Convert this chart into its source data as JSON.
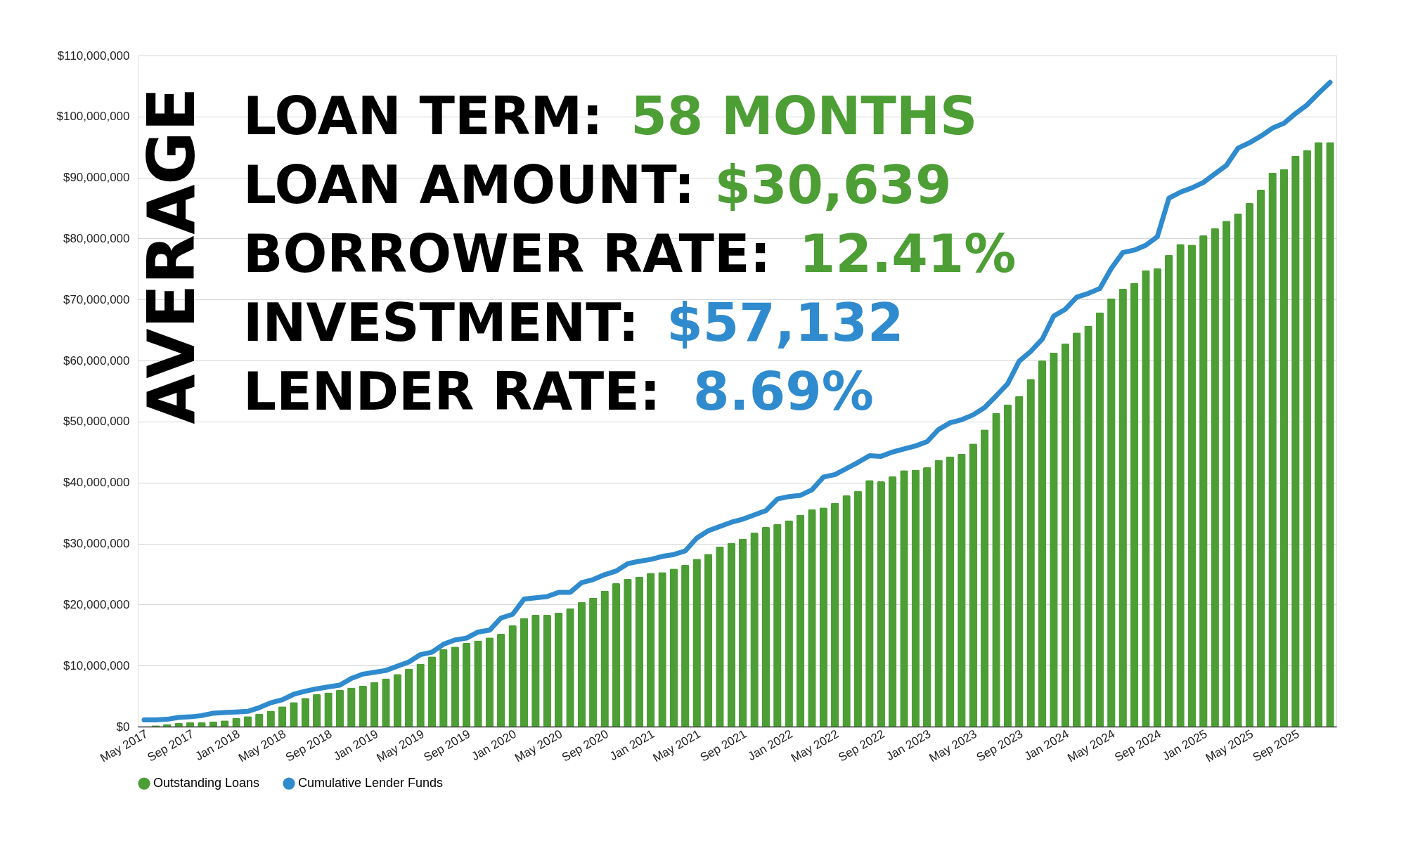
{
  "chart_data": {
    "type": "bar",
    "categories": [
      "May 2017",
      null,
      null,
      null,
      "Sep 2017",
      null,
      null,
      null,
      "Jan 2018",
      null,
      null,
      null,
      "May 2018",
      null,
      null,
      null,
      "Sep 2018",
      null,
      null,
      null,
      "Jan 2019",
      null,
      null,
      null,
      "May 2019",
      null,
      null,
      null,
      "Sep 2019",
      null,
      null,
      null,
      "Jan 2020",
      null,
      null,
      null,
      "May 2020",
      null,
      null,
      null,
      "Sep 2020",
      null,
      null,
      null,
      "Jan 2021",
      null,
      null,
      null,
      "May 2021",
      null,
      null,
      null,
      "Sep 2021",
      null,
      null,
      null,
      "Jan 2022",
      null,
      null,
      null,
      "May 2022",
      null,
      null,
      null,
      "Sep 2022",
      null,
      null,
      null,
      "Jan 2023",
      null,
      null,
      null,
      "May 2023",
      null,
      null,
      null,
      "Sep 2023",
      null,
      null,
      null,
      "Jan 2024",
      null,
      null,
      null,
      "May 2024",
      null,
      null,
      null,
      "Sep 2024",
      null,
      null,
      null,
      "Jan 2025",
      null,
      null,
      null,
      "May 2025",
      null,
      null,
      null,
      "Sep 2025",
      null,
      null,
      null
    ],
    "series": [
      {
        "name": "Outstanding Loans",
        "color": "#4c9e35",
        "values": [
          null,
          200000,
          400000,
          600000,
          700000,
          700000,
          800000,
          1000000,
          1400000,
          1700000,
          2100000,
          2600000,
          3300000,
          4000000,
          4700000,
          5300000,
          5600000,
          6000000,
          6400000,
          6700000,
          7300000,
          7900000,
          8600000,
          9500000,
          10300000,
          11500000,
          12700000,
          13100000,
          13700000,
          14100000,
          14600000,
          15200000,
          16600000,
          17800000,
          18300000,
          18300000,
          18700000,
          19400000,
          20400000,
          21100000,
          22300000,
          23500000,
          24200000,
          24600000,
          25200000,
          25300000,
          25900000,
          26500000,
          27500000,
          28300000,
          29500000,
          30100000,
          30800000,
          31800000,
          32700000,
          33200000,
          33800000,
          34700000,
          35600000,
          35900000,
          36700000,
          37900000,
          38600000,
          40400000,
          40200000,
          41000000,
          42000000,
          42100000,
          42500000,
          43700000,
          44300000,
          44700000,
          46400000,
          48700000,
          51400000,
          52800000,
          54200000,
          57000000,
          60000000,
          61300000,
          62800000,
          64600000,
          65700000,
          67900000,
          70200000,
          71800000,
          72700000,
          74800000,
          75100000,
          77300000,
          79100000,
          79000000,
          80500000,
          81700000,
          82900000,
          84100000,
          85800000,
          88000000,
          90800000,
          91400000,
          93600000,
          94500000,
          95800000,
          95800000
        ]
      },
      {
        "name": "Cumulative Lender Funds",
        "type": "line",
        "color": "#2f8bce",
        "values": [
          1100000,
          1100000,
          1200000,
          1500000,
          1600000,
          1800000,
          2200000,
          2300000,
          2400000,
          2500000,
          3100000,
          3900000,
          4400000,
          5300000,
          5800000,
          6200000,
          6500000,
          6800000,
          7900000,
          8600000,
          8900000,
          9200000,
          9900000,
          10600000,
          11800000,
          12200000,
          13500000,
          14200000,
          14500000,
          15500000,
          15800000,
          17800000,
          18400000,
          20900000,
          21100000,
          21300000,
          22000000,
          22000000,
          23600000,
          24100000,
          24900000,
          25500000,
          26700000,
          27100000,
          27400000,
          27900000,
          28200000,
          28800000,
          30900000,
          32100000,
          32800000,
          33500000,
          34000000,
          34700000,
          35400000,
          37300000,
          37700000,
          37900000,
          38800000,
          40900000,
          41300000,
          42300000,
          43300000,
          44400000,
          44300000,
          45000000,
          45500000,
          46000000,
          46700000,
          48700000,
          49800000,
          50300000,
          51100000,
          52300000,
          54200000,
          56200000,
          59900000,
          61500000,
          63500000,
          67300000,
          68400000,
          70400000,
          71000000,
          71800000,
          75100000,
          77700000,
          78100000,
          78900000,
          80300000,
          86600000,
          87600000,
          88300000,
          89200000,
          90600000,
          92000000,
          94800000,
          95700000,
          96800000,
          98100000,
          98900000,
          100500000,
          101900000,
          103800000,
          105600000
        ]
      }
    ],
    "ylim": [
      0,
      110000000
    ],
    "yticks": [
      {
        "value": 0,
        "label": "$0"
      },
      {
        "value": 10000000,
        "label": "$10,000,000"
      },
      {
        "value": 20000000,
        "label": "$20,000,000"
      },
      {
        "value": 30000000,
        "label": "$30,000,000"
      },
      {
        "value": 40000000,
        "label": "$40,000,000"
      },
      {
        "value": 50000000,
        "label": "$50,000,000"
      },
      {
        "value": 60000000,
        "label": "$60,000,000"
      },
      {
        "value": 70000000,
        "label": "$70,000,000"
      },
      {
        "value": 80000000,
        "label": "$80,000,000"
      },
      {
        "value": 90000000,
        "label": "$90,000,000"
      },
      {
        "value": 100000000,
        "label": "$100,000,000"
      },
      {
        "value": 110000000,
        "label": "$110,000,000"
      }
    ],
    "grid": "y",
    "legend": "bottom",
    "line_style": "solid",
    "annotations": [
      "AVERAGE",
      "LOAN TERM: 58 MONTHS",
      "LOAN AMOUNT: $30,639",
      "BORROWER RATE: 12.41%",
      "INVESTMENT: $57,132",
      "LENDER RATE: 8.69%"
    ]
  }
}
